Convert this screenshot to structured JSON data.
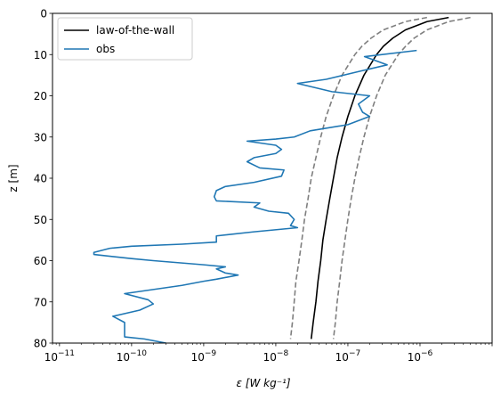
{
  "chart_data": {
    "type": "line",
    "title": "",
    "xlabel": "ε [W kg⁻¹]",
    "ylabel": "z [m]",
    "xscale": "log",
    "xlim": [
      8e-12,
      1e-05
    ],
    "ylim": [
      80,
      0
    ],
    "y_inverted": true,
    "grid": false,
    "legend_position": "upper-left",
    "x_ticks": [
      {
        "value": 1e-11,
        "base": "10",
        "exp": "−11"
      },
      {
        "value": 1e-10,
        "base": "10",
        "exp": "−10"
      },
      {
        "value": 1e-09,
        "base": "10",
        "exp": "−9"
      },
      {
        "value": 1e-08,
        "base": "10",
        "exp": "−8"
      },
      {
        "value": 1e-07,
        "base": "10",
        "exp": "−7"
      },
      {
        "value": 1e-06,
        "base": "10",
        "exp": "−6"
      }
    ],
    "y_ticks": [
      0,
      10,
      20,
      30,
      40,
      50,
      60,
      70,
      80
    ],
    "series": [
      {
        "name": "law-of-the-wall",
        "color": "#000000",
        "style": "solid",
        "points": [
          [
            2.5e-06,
            1
          ],
          [
            1.25e-06,
            2
          ],
          [
            6.3e-07,
            4
          ],
          [
            4.2e-07,
            6
          ],
          [
            3.1e-07,
            8
          ],
          [
            2.5e-07,
            10
          ],
          [
            1.67e-07,
            15
          ],
          [
            1.25e-07,
            20
          ],
          [
            1e-07,
            25
          ],
          [
            8.3e-08,
            30
          ],
          [
            7.1e-08,
            35
          ],
          [
            6.3e-08,
            40
          ],
          [
            5.6e-08,
            45
          ],
          [
            5e-08,
            50
          ],
          [
            4.5e-08,
            55
          ],
          [
            4.2e-08,
            60
          ],
          [
            3.85e-08,
            65
          ],
          [
            3.6e-08,
            70
          ],
          [
            3.3e-08,
            75
          ],
          [
            3.1e-08,
            79
          ]
        ]
      },
      {
        "name": "",
        "color": "#7f7f7f",
        "style": "dashed",
        "points": [
          [
            5e-06,
            1
          ],
          [
            2.5e-06,
            2
          ],
          [
            1.25e-06,
            4
          ],
          [
            8.3e-07,
            6
          ],
          [
            6.3e-07,
            8
          ],
          [
            5e-07,
            10
          ],
          [
            3.3e-07,
            15
          ],
          [
            2.5e-07,
            20
          ],
          [
            2e-07,
            25
          ],
          [
            1.67e-07,
            30
          ],
          [
            1.43e-07,
            35
          ],
          [
            1.25e-07,
            40
          ],
          [
            1.11e-07,
            45
          ],
          [
            1e-07,
            50
          ],
          [
            9.1e-08,
            55
          ],
          [
            8.3e-08,
            60
          ],
          [
            7.7e-08,
            65
          ],
          [
            7.1e-08,
            70
          ],
          [
            6.7e-08,
            75
          ],
          [
            6.3e-08,
            79
          ]
        ]
      },
      {
        "name": "",
        "color": "#7f7f7f",
        "style": "dashed",
        "points": [
          [
            1.25e-06,
            1
          ],
          [
            6.3e-07,
            2
          ],
          [
            3.1e-07,
            4
          ],
          [
            2.1e-07,
            6
          ],
          [
            1.56e-07,
            8
          ],
          [
            1.25e-07,
            10
          ],
          [
            8.3e-08,
            15
          ],
          [
            6.3e-08,
            20
          ],
          [
            5e-08,
            25
          ],
          [
            4.2e-08,
            30
          ],
          [
            3.6e-08,
            35
          ],
          [
            3.1e-08,
            40
          ],
          [
            2.8e-08,
            45
          ],
          [
            2.5e-08,
            50
          ],
          [
            2.3e-08,
            55
          ],
          [
            2.1e-08,
            60
          ],
          [
            1.9e-08,
            65
          ],
          [
            1.8e-08,
            70
          ],
          [
            1.7e-08,
            75
          ],
          [
            1.6e-08,
            79
          ]
        ]
      },
      {
        "name": "obs",
        "color": "#1f77b4",
        "style": "solid",
        "points": [
          [
            9e-07,
            9
          ],
          [
            1.7e-07,
            10.5
          ],
          [
            3.5e-07,
            12.5
          ],
          [
            1.5e-07,
            14
          ],
          [
            5e-08,
            16
          ],
          [
            2e-08,
            17
          ],
          [
            6e-08,
            19
          ],
          [
            2e-07,
            20
          ],
          [
            1.4e-07,
            22
          ],
          [
            1.6e-07,
            24
          ],
          [
            2e-07,
            25
          ],
          [
            1e-07,
            27
          ],
          [
            3e-08,
            28.5
          ],
          [
            1.8e-08,
            30
          ],
          [
            1e-08,
            30.5
          ],
          [
            4e-09,
            31
          ],
          [
            1e-08,
            32
          ],
          [
            1.2e-08,
            33
          ],
          [
            1e-08,
            34
          ],
          [
            5e-09,
            35
          ],
          [
            4e-09,
            36
          ],
          [
            6e-09,
            37.5
          ],
          [
            1.3e-08,
            38
          ],
          [
            1.2e-08,
            39.5
          ],
          [
            5e-09,
            41
          ],
          [
            2e-09,
            42
          ],
          [
            1.5e-09,
            43
          ],
          [
            1.4e-09,
            44.5
          ],
          [
            1.5e-09,
            45.5
          ],
          [
            6e-09,
            46
          ],
          [
            5e-09,
            47
          ],
          [
            8e-09,
            48
          ],
          [
            1.5e-08,
            48.5
          ],
          [
            1.8e-08,
            50
          ],
          [
            1.6e-08,
            51.5
          ],
          [
            2e-08,
            52
          ],
          [
            5e-09,
            53
          ],
          [
            1.5e-09,
            54
          ],
          [
            1.5e-09,
            55.5
          ],
          [
            5e-10,
            56
          ],
          [
            1e-10,
            56.5
          ],
          [
            5e-11,
            57
          ],
          [
            3e-11,
            58
          ],
          [
            3e-11,
            58.5
          ],
          [
            1e-10,
            59.5
          ],
          [
            2e-10,
            60
          ],
          [
            1e-09,
            61
          ],
          [
            2e-09,
            61.5
          ],
          [
            1.5e-09,
            62
          ],
          [
            2e-09,
            63
          ],
          [
            3e-09,
            63.5
          ],
          [
            1.5e-09,
            64.5
          ],
          [
            1e-09,
            65
          ],
          [
            5e-10,
            66
          ],
          [
            8e-11,
            68
          ],
          [
            1.7e-10,
            69.5
          ],
          [
            2e-10,
            70.5
          ],
          [
            1.3e-10,
            72
          ],
          [
            5.5e-11,
            73.5
          ],
          [
            8e-11,
            75
          ],
          [
            8e-11,
            78
          ],
          [
            8e-11,
            78.5
          ],
          [
            1.5e-10,
            79
          ],
          [
            3e-10,
            80
          ]
        ]
      }
    ],
    "legend": [
      {
        "label": "law-of-the-wall",
        "color": "#000000"
      },
      {
        "label": "obs",
        "color": "#1f77b4"
      }
    ]
  }
}
